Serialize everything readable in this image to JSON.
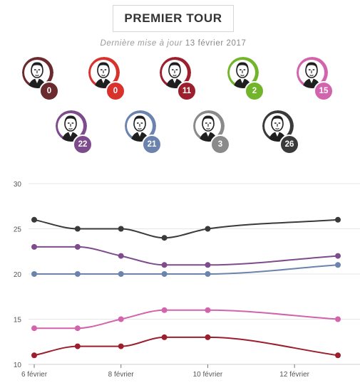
{
  "header": {
    "title": "PREMIER TOUR",
    "updated_label": "Dernière mise à jour",
    "updated_date": "13 février 2017"
  },
  "candidates": [
    {
      "value": "0",
      "color": "#6b2a2e",
      "icon": "candidate-portrait-icon"
    },
    {
      "value": "0",
      "color": "#d9322c",
      "icon": "candidate-portrait-icon"
    },
    {
      "value": "11",
      "color": "#9b1f2c",
      "icon": "candidate-portrait-icon"
    },
    {
      "value": "2",
      "color": "#72b52a",
      "icon": "candidate-portrait-icon"
    },
    {
      "value": "15",
      "color": "#d263ad",
      "icon": "candidate-portrait-icon"
    },
    {
      "value": "22",
      "color": "#7e4b8c",
      "icon": "candidate-portrait-icon"
    },
    {
      "value": "21",
      "color": "#6b83ad",
      "icon": "candidate-portrait-icon"
    },
    {
      "value": "3",
      "color": "#8a8a8a",
      "icon": "candidate-portrait-icon"
    },
    {
      "value": "26",
      "color": "#3a3a3a",
      "icon": "candidate-portrait-icon"
    }
  ],
  "chart_data": {
    "type": "line",
    "x": [
      "6 février",
      "7 février",
      "8 février",
      "9 février",
      "10 février",
      "13 février"
    ],
    "x_days": [
      6,
      7,
      8,
      9,
      10,
      13
    ],
    "xticks": [
      "6 février",
      "8 février",
      "10 février",
      "12 février"
    ],
    "xtick_days": [
      6,
      8,
      10,
      12
    ],
    "yticks": [
      "10",
      "15",
      "20",
      "25",
      "30"
    ],
    "ylim": [
      10,
      30
    ],
    "grid": true,
    "series": [
      {
        "color": "#3a3a3a",
        "values": [
          26,
          25,
          25,
          24,
          25,
          26
        ]
      },
      {
        "color": "#7e4b8c",
        "values": [
          23,
          23,
          22,
          21,
          21,
          22
        ]
      },
      {
        "color": "#6b83ad",
        "values": [
          20,
          20,
          20,
          20,
          20,
          21
        ]
      },
      {
        "color": "#d263ad",
        "values": [
          14,
          14,
          15,
          16,
          16,
          15
        ]
      },
      {
        "color": "#9b1f2c",
        "values": [
          11,
          12,
          12,
          13,
          13,
          11
        ]
      }
    ]
  }
}
